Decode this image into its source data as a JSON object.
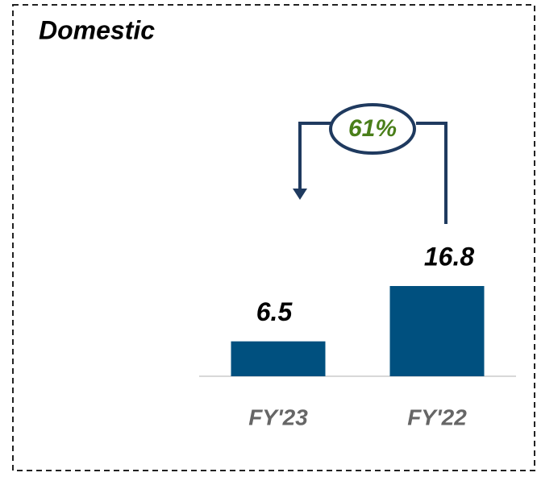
{
  "chart_data": {
    "type": "bar",
    "title": "Domestic",
    "categories": [
      "FY'23",
      "FY'22"
    ],
    "values": [
      6.5,
      16.8
    ],
    "color": "#00507f",
    "annotations": [
      "61%"
    ]
  }
}
